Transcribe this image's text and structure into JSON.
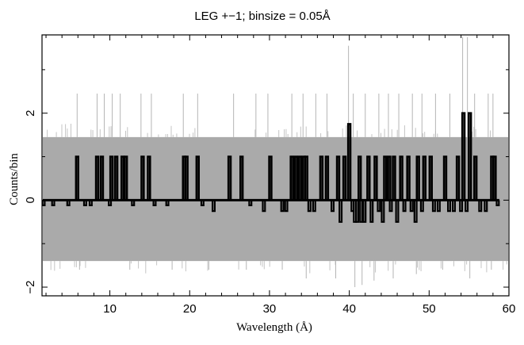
{
  "chart_data": {
    "type": "line",
    "title": "LEG +−1; binsize = 0.05Å",
    "xlabel": "Wavelength (Å)",
    "ylabel": "Counts/bin",
    "xlim": [
      1.5,
      60
    ],
    "ylim": [
      -2.2,
      3.8
    ],
    "xticks": [
      10,
      20,
      30,
      40,
      50,
      60
    ],
    "xtick_labels": [
      "10",
      "20",
      "30",
      "40",
      "50",
      "60"
    ],
    "yticks": [
      -2,
      0,
      2
    ],
    "ytick_labels": [
      "−2",
      "0",
      "2"
    ],
    "grid": false,
    "legend": "none",
    "series": [
      {
        "style": "gray thin histogram (noise envelope)",
        "color": "#aaaaaa",
        "band": [
          -1.4,
          1.45
        ],
        "spikes": [
          {
            "x": 5.9,
            "y": 2.45
          },
          {
            "x": 8.4,
            "y": 2.45
          },
          {
            "x": 9.3,
            "y": 2.45
          },
          {
            "x": 10.3,
            "y": 2.45
          },
          {
            "x": 11.3,
            "y": 2.45
          },
          {
            "x": 13.9,
            "y": 2.45
          },
          {
            "x": 15.2,
            "y": 2.45
          },
          {
            "x": 19.2,
            "y": 2.45
          },
          {
            "x": 21.0,
            "y": 2.45
          },
          {
            "x": 25.5,
            "y": 2.45
          },
          {
            "x": 28.3,
            "y": 2.45
          },
          {
            "x": 29.8,
            "y": 2.45
          },
          {
            "x": 32.8,
            "y": 2.45
          },
          {
            "x": 34.2,
            "y": 2.45
          },
          {
            "x": 35.8,
            "y": 2.45
          },
          {
            "x": 37.2,
            "y": 2.45
          },
          {
            "x": 39.9,
            "y": 3.55
          },
          {
            "x": 40.5,
            "y": 2.45
          },
          {
            "x": 42.0,
            "y": 2.45
          },
          {
            "x": 43.7,
            "y": 2.45
          },
          {
            "x": 44.9,
            "y": 2.45
          },
          {
            "x": 46.2,
            "y": 2.45
          },
          {
            "x": 47.9,
            "y": 2.45
          },
          {
            "x": 49.1,
            "y": 2.45
          },
          {
            "x": 50.8,
            "y": 2.45
          },
          {
            "x": 52.6,
            "y": 2.45
          },
          {
            "x": 54.2,
            "y": 3.75
          },
          {
            "x": 54.8,
            "y": 3.75
          },
          {
            "x": 55.7,
            "y": 2.45
          },
          {
            "x": 57.4,
            "y": 2.45
          },
          {
            "x": 58.0,
            "y": 2.45
          },
          {
            "x": 6.2,
            "y": -1.6
          },
          {
            "x": 12.5,
            "y": -1.6
          },
          {
            "x": 17.8,
            "y": -1.6
          },
          {
            "x": 22.4,
            "y": -1.6
          },
          {
            "x": 27.1,
            "y": -1.6
          },
          {
            "x": 31.6,
            "y": -1.6
          },
          {
            "x": 34.6,
            "y": -1.8
          },
          {
            "x": 38.3,
            "y": -1.8
          },
          {
            "x": 40.7,
            "y": -2.0
          },
          {
            "x": 41.6,
            "y": -1.95
          },
          {
            "x": 43.1,
            "y": -1.85
          },
          {
            "x": 45.5,
            "y": -1.8
          },
          {
            "x": 48.4,
            "y": -1.7
          },
          {
            "x": 51.7,
            "y": -1.6
          },
          {
            "x": 55.1,
            "y": -1.8
          },
          {
            "x": 57.8,
            "y": -1.6
          }
        ]
      },
      {
        "style": "black thick histogram (signal)",
        "color": "#000000",
        "baseline": 0,
        "points": [
          {
            "x": 5.9,
            "y": 1.0
          },
          {
            "x": 8.4,
            "y": 1.0
          },
          {
            "x": 9.0,
            "y": 1.0
          },
          {
            "x": 10.2,
            "y": 1.0
          },
          {
            "x": 10.8,
            "y": 1.0
          },
          {
            "x": 11.6,
            "y": 1.0
          },
          {
            "x": 12.0,
            "y": 1.0
          },
          {
            "x": 14.1,
            "y": 1.0
          },
          {
            "x": 14.9,
            "y": 1.0
          },
          {
            "x": 19.3,
            "y": 1.0
          },
          {
            "x": 19.6,
            "y": 1.0
          },
          {
            "x": 21.0,
            "y": 1.0
          },
          {
            "x": 25.0,
            "y": 1.0
          },
          {
            "x": 26.5,
            "y": 1.0
          },
          {
            "x": 30.1,
            "y": 1.0
          },
          {
            "x": 32.8,
            "y": 1.0
          },
          {
            "x": 33.3,
            "y": 1.0
          },
          {
            "x": 33.8,
            "y": 1.0
          },
          {
            "x": 34.3,
            "y": 1.0
          },
          {
            "x": 34.6,
            "y": 1.0
          },
          {
            "x": 36.5,
            "y": 1.0
          },
          {
            "x": 37.2,
            "y": 1.0
          },
          {
            "x": 38.6,
            "y": 1.0
          },
          {
            "x": 39.4,
            "y": 1.0
          },
          {
            "x": 40.0,
            "y": 1.75
          },
          {
            "x": 41.3,
            "y": 1.0
          },
          {
            "x": 42.4,
            "y": 1.0
          },
          {
            "x": 43.3,
            "y": 1.0
          },
          {
            "x": 44.5,
            "y": 1.0
          },
          {
            "x": 45.0,
            "y": 1.0
          },
          {
            "x": 45.6,
            "y": 1.0
          },
          {
            "x": 46.5,
            "y": 1.0
          },
          {
            "x": 47.4,
            "y": 1.0
          },
          {
            "x": 48.6,
            "y": 1.0
          },
          {
            "x": 49.4,
            "y": 1.0
          },
          {
            "x": 50.2,
            "y": 1.0
          },
          {
            "x": 52.0,
            "y": 1.0
          },
          {
            "x": 53.6,
            "y": 1.0
          },
          {
            "x": 54.3,
            "y": 2.0
          },
          {
            "x": 55.1,
            "y": 2.0
          },
          {
            "x": 55.8,
            "y": 1.0
          },
          {
            "x": 57.9,
            "y": 1.0
          },
          {
            "x": 58.2,
            "y": 1.0
          },
          {
            "x": 1.7,
            "y": -0.12
          },
          {
            "x": 2.9,
            "y": -0.12
          },
          {
            "x": 4.8,
            "y": -0.12
          },
          {
            "x": 6.9,
            "y": -0.12
          },
          {
            "x": 7.6,
            "y": -0.12
          },
          {
            "x": 10.0,
            "y": -0.12
          },
          {
            "x": 12.9,
            "y": -0.12
          },
          {
            "x": 15.6,
            "y": -0.12
          },
          {
            "x": 17.2,
            "y": -0.12
          },
          {
            "x": 21.6,
            "y": -0.12
          },
          {
            "x": 23.0,
            "y": -0.25
          },
          {
            "x": 27.6,
            "y": -0.12
          },
          {
            "x": 29.3,
            "y": -0.25
          },
          {
            "x": 31.6,
            "y": -0.25
          },
          {
            "x": 32.1,
            "y": -0.25
          },
          {
            "x": 35.0,
            "y": -0.25
          },
          {
            "x": 35.6,
            "y": -0.25
          },
          {
            "x": 37.9,
            "y": -0.25
          },
          {
            "x": 38.9,
            "y": -0.5
          },
          {
            "x": 40.4,
            "y": -0.25
          },
          {
            "x": 40.7,
            "y": -0.5
          },
          {
            "x": 41.0,
            "y": -0.5
          },
          {
            "x": 41.5,
            "y": -0.5
          },
          {
            "x": 41.9,
            "y": -0.5
          },
          {
            "x": 42.8,
            "y": -0.5
          },
          {
            "x": 43.7,
            "y": -0.25
          },
          {
            "x": 44.2,
            "y": -0.5
          },
          {
            "x": 45.2,
            "y": -0.25
          },
          {
            "x": 46.0,
            "y": -0.5
          },
          {
            "x": 46.9,
            "y": -0.25
          },
          {
            "x": 47.8,
            "y": -0.25
          },
          {
            "x": 48.3,
            "y": -0.5
          },
          {
            "x": 49.1,
            "y": -0.25
          },
          {
            "x": 50.6,
            "y": -0.25
          },
          {
            "x": 51.2,
            "y": -0.25
          },
          {
            "x": 52.5,
            "y": -0.25
          },
          {
            "x": 53.1,
            "y": -0.25
          },
          {
            "x": 54.0,
            "y": -0.25
          },
          {
            "x": 54.7,
            "y": -0.25
          },
          {
            "x": 56.4,
            "y": -0.25
          },
          {
            "x": 57.1,
            "y": -0.25
          },
          {
            "x": 58.6,
            "y": -0.12
          }
        ]
      }
    ]
  }
}
